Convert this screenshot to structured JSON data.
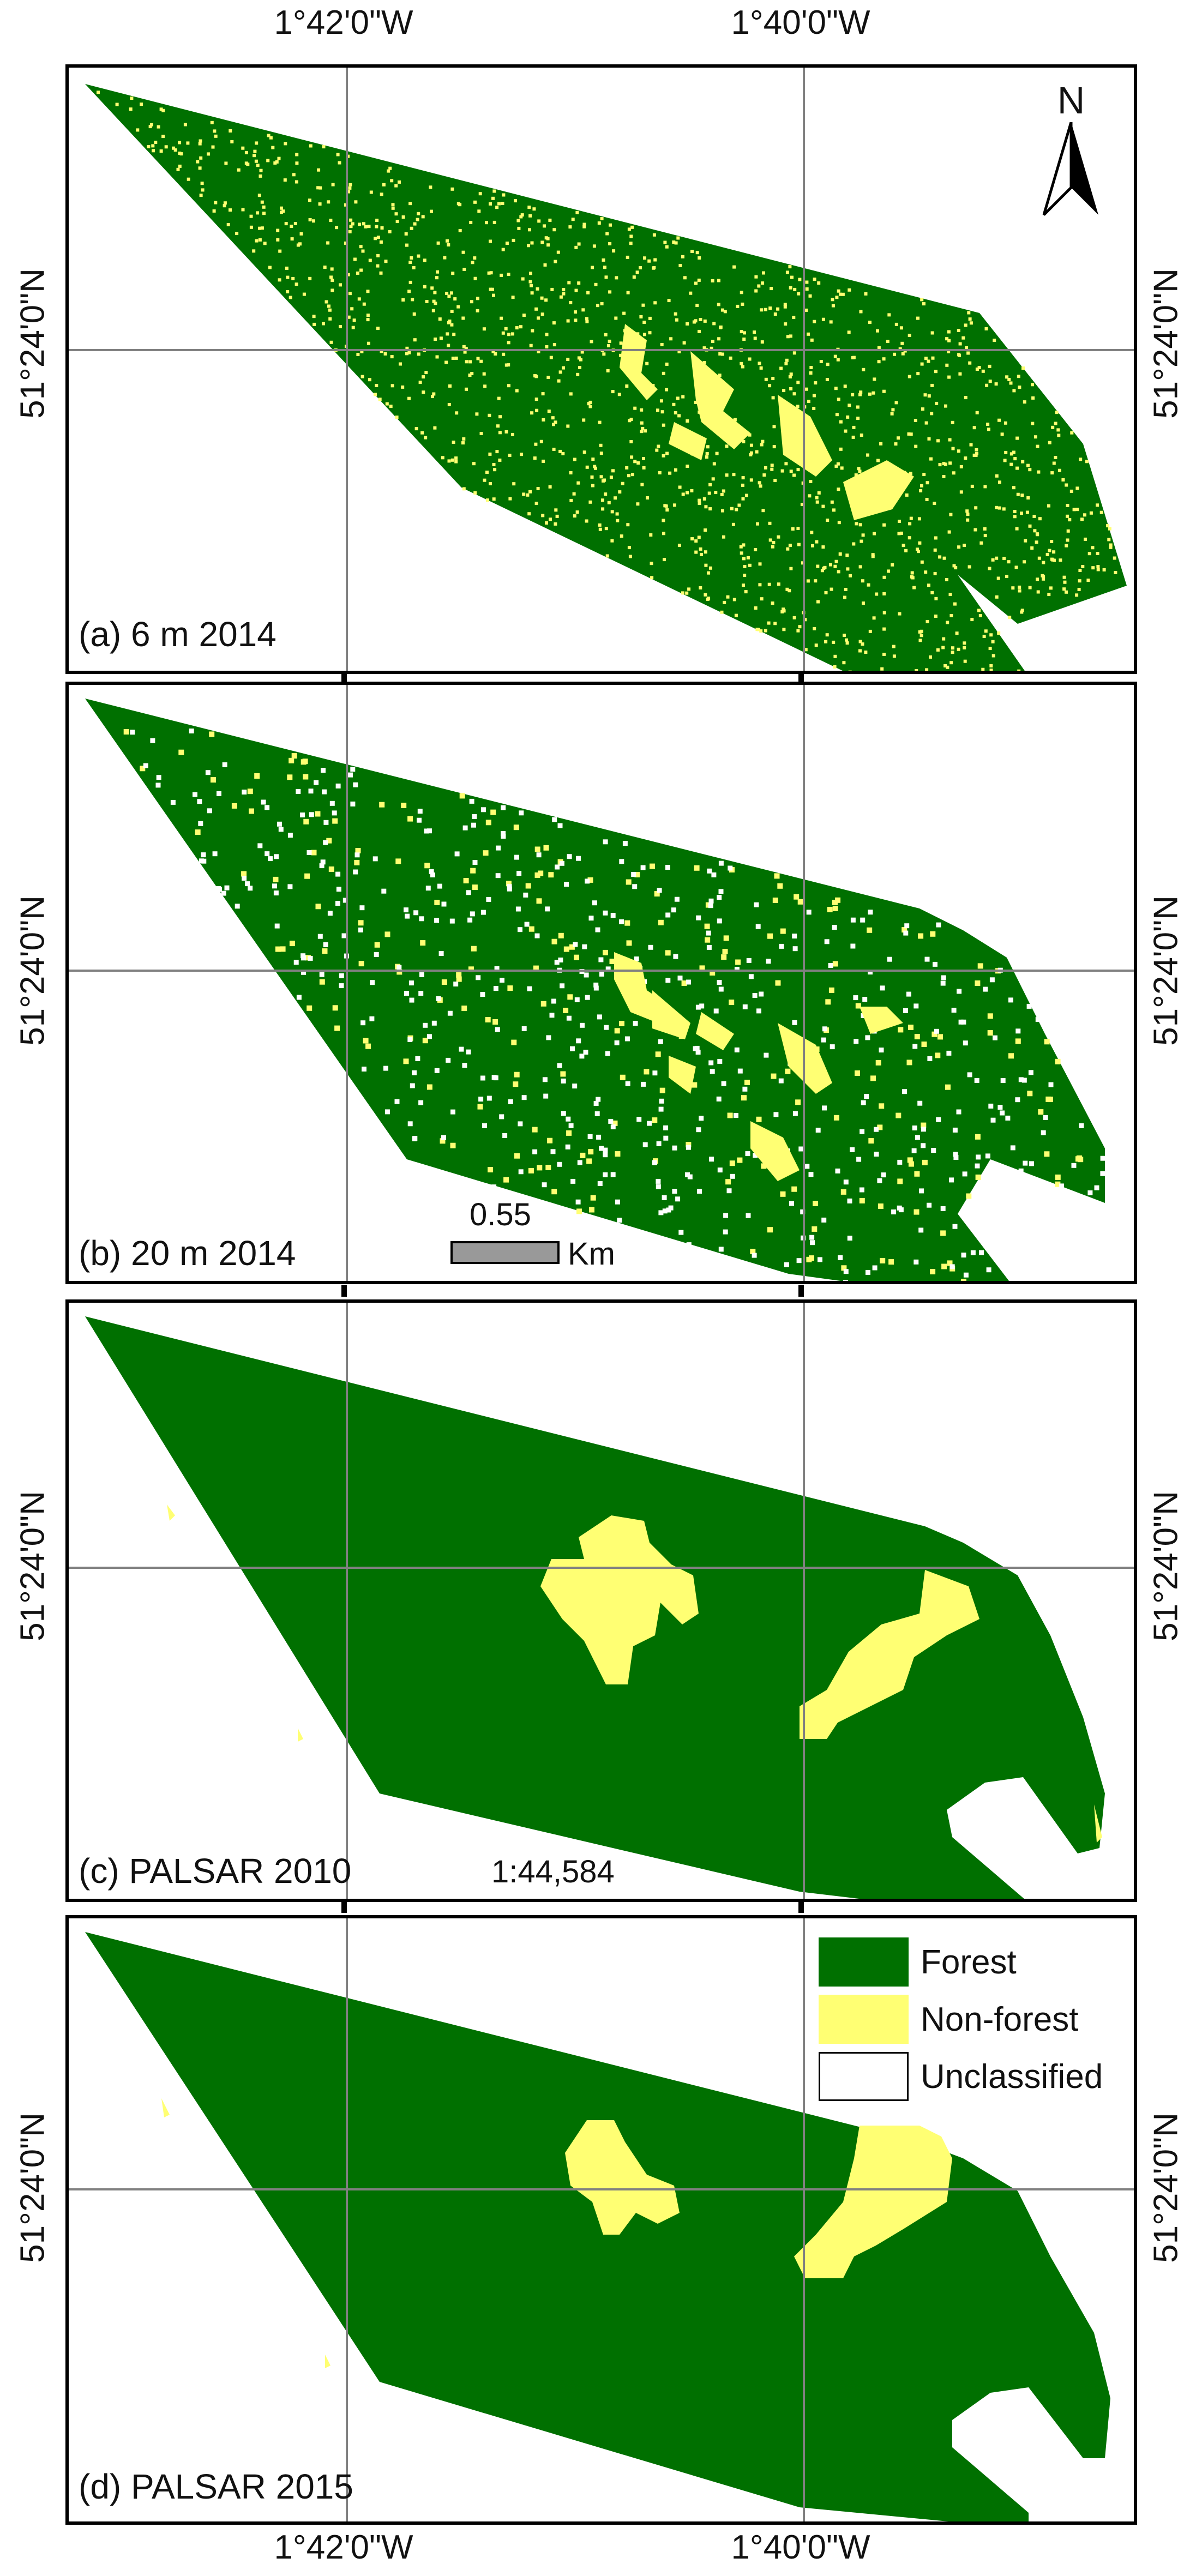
{
  "longitude_labels": {
    "left": "1°42'0\"W",
    "right": "1°40'0\"W"
  },
  "latitude_label": "51°24'0\"N",
  "panels": [
    {
      "label": "(a) 6 m 2014"
    },
    {
      "label": "(b) 20 m 2014"
    },
    {
      "label": "(c) PALSAR 2010"
    },
    {
      "label": "(d) PALSAR 2015"
    }
  ],
  "north_arrow": {
    "letter": "N",
    "icon": "north-arrow-icon"
  },
  "scale_bar": {
    "value": "0.55",
    "unit": "Km"
  },
  "scale_ratio": "1:44,584",
  "legend": [
    {
      "label": "Forest",
      "color": "#007000"
    },
    {
      "label": "Non-forest",
      "color": "#ffff73"
    },
    {
      "label": "Unclassified",
      "color": "#ffffff"
    }
  ],
  "colors": {
    "forest": "#007000",
    "nonforest": "#ffff73",
    "grid": "#808080",
    "frame": "#000000"
  }
}
